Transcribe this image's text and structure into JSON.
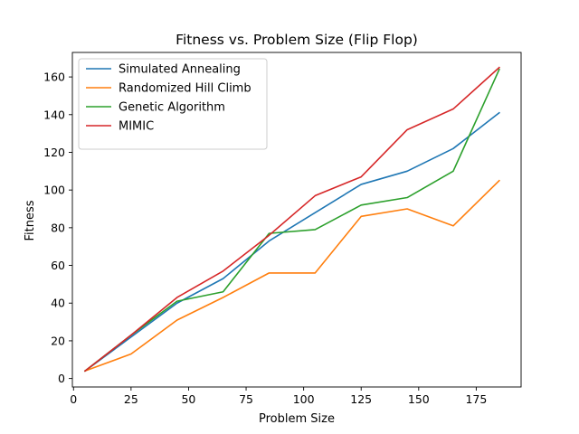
{
  "chart_data": {
    "type": "line",
    "title": "Fitness vs. Problem Size (Flip Flop)",
    "xlabel": "Problem Size",
    "ylabel": "Fitness",
    "xlim": [
      -0.5,
      194.5
    ],
    "ylim": [
      -4.5,
      173.0
    ],
    "xticks": [
      0,
      25,
      50,
      75,
      100,
      125,
      150,
      175
    ],
    "yticks": [
      0,
      20,
      40,
      60,
      80,
      100,
      120,
      140,
      160
    ],
    "x": [
      5,
      25,
      45,
      65,
      85,
      105,
      125,
      145,
      165,
      185
    ],
    "grid": false,
    "legend_position": "top-left",
    "series": [
      {
        "name": "Simulated Annealing",
        "color": "#1f77b4",
        "values": [
          4,
          22,
          40,
          53,
          73,
          88,
          103,
          110,
          122,
          141
        ]
      },
      {
        "name": "Randomized Hill Climb",
        "color": "#ff7f0e",
        "values": [
          4,
          13,
          31,
          43,
          56,
          56,
          86,
          90,
          81,
          105
        ]
      },
      {
        "name": "Genetic Algorithm",
        "color": "#2ca02c",
        "values": [
          4,
          23,
          41,
          46,
          77,
          79,
          92,
          96,
          110,
          164
        ]
      },
      {
        "name": "MIMIC",
        "color": "#d62728",
        "values": [
          4,
          23,
          43,
          57,
          76,
          97,
          107,
          132,
          143,
          165
        ]
      }
    ]
  }
}
